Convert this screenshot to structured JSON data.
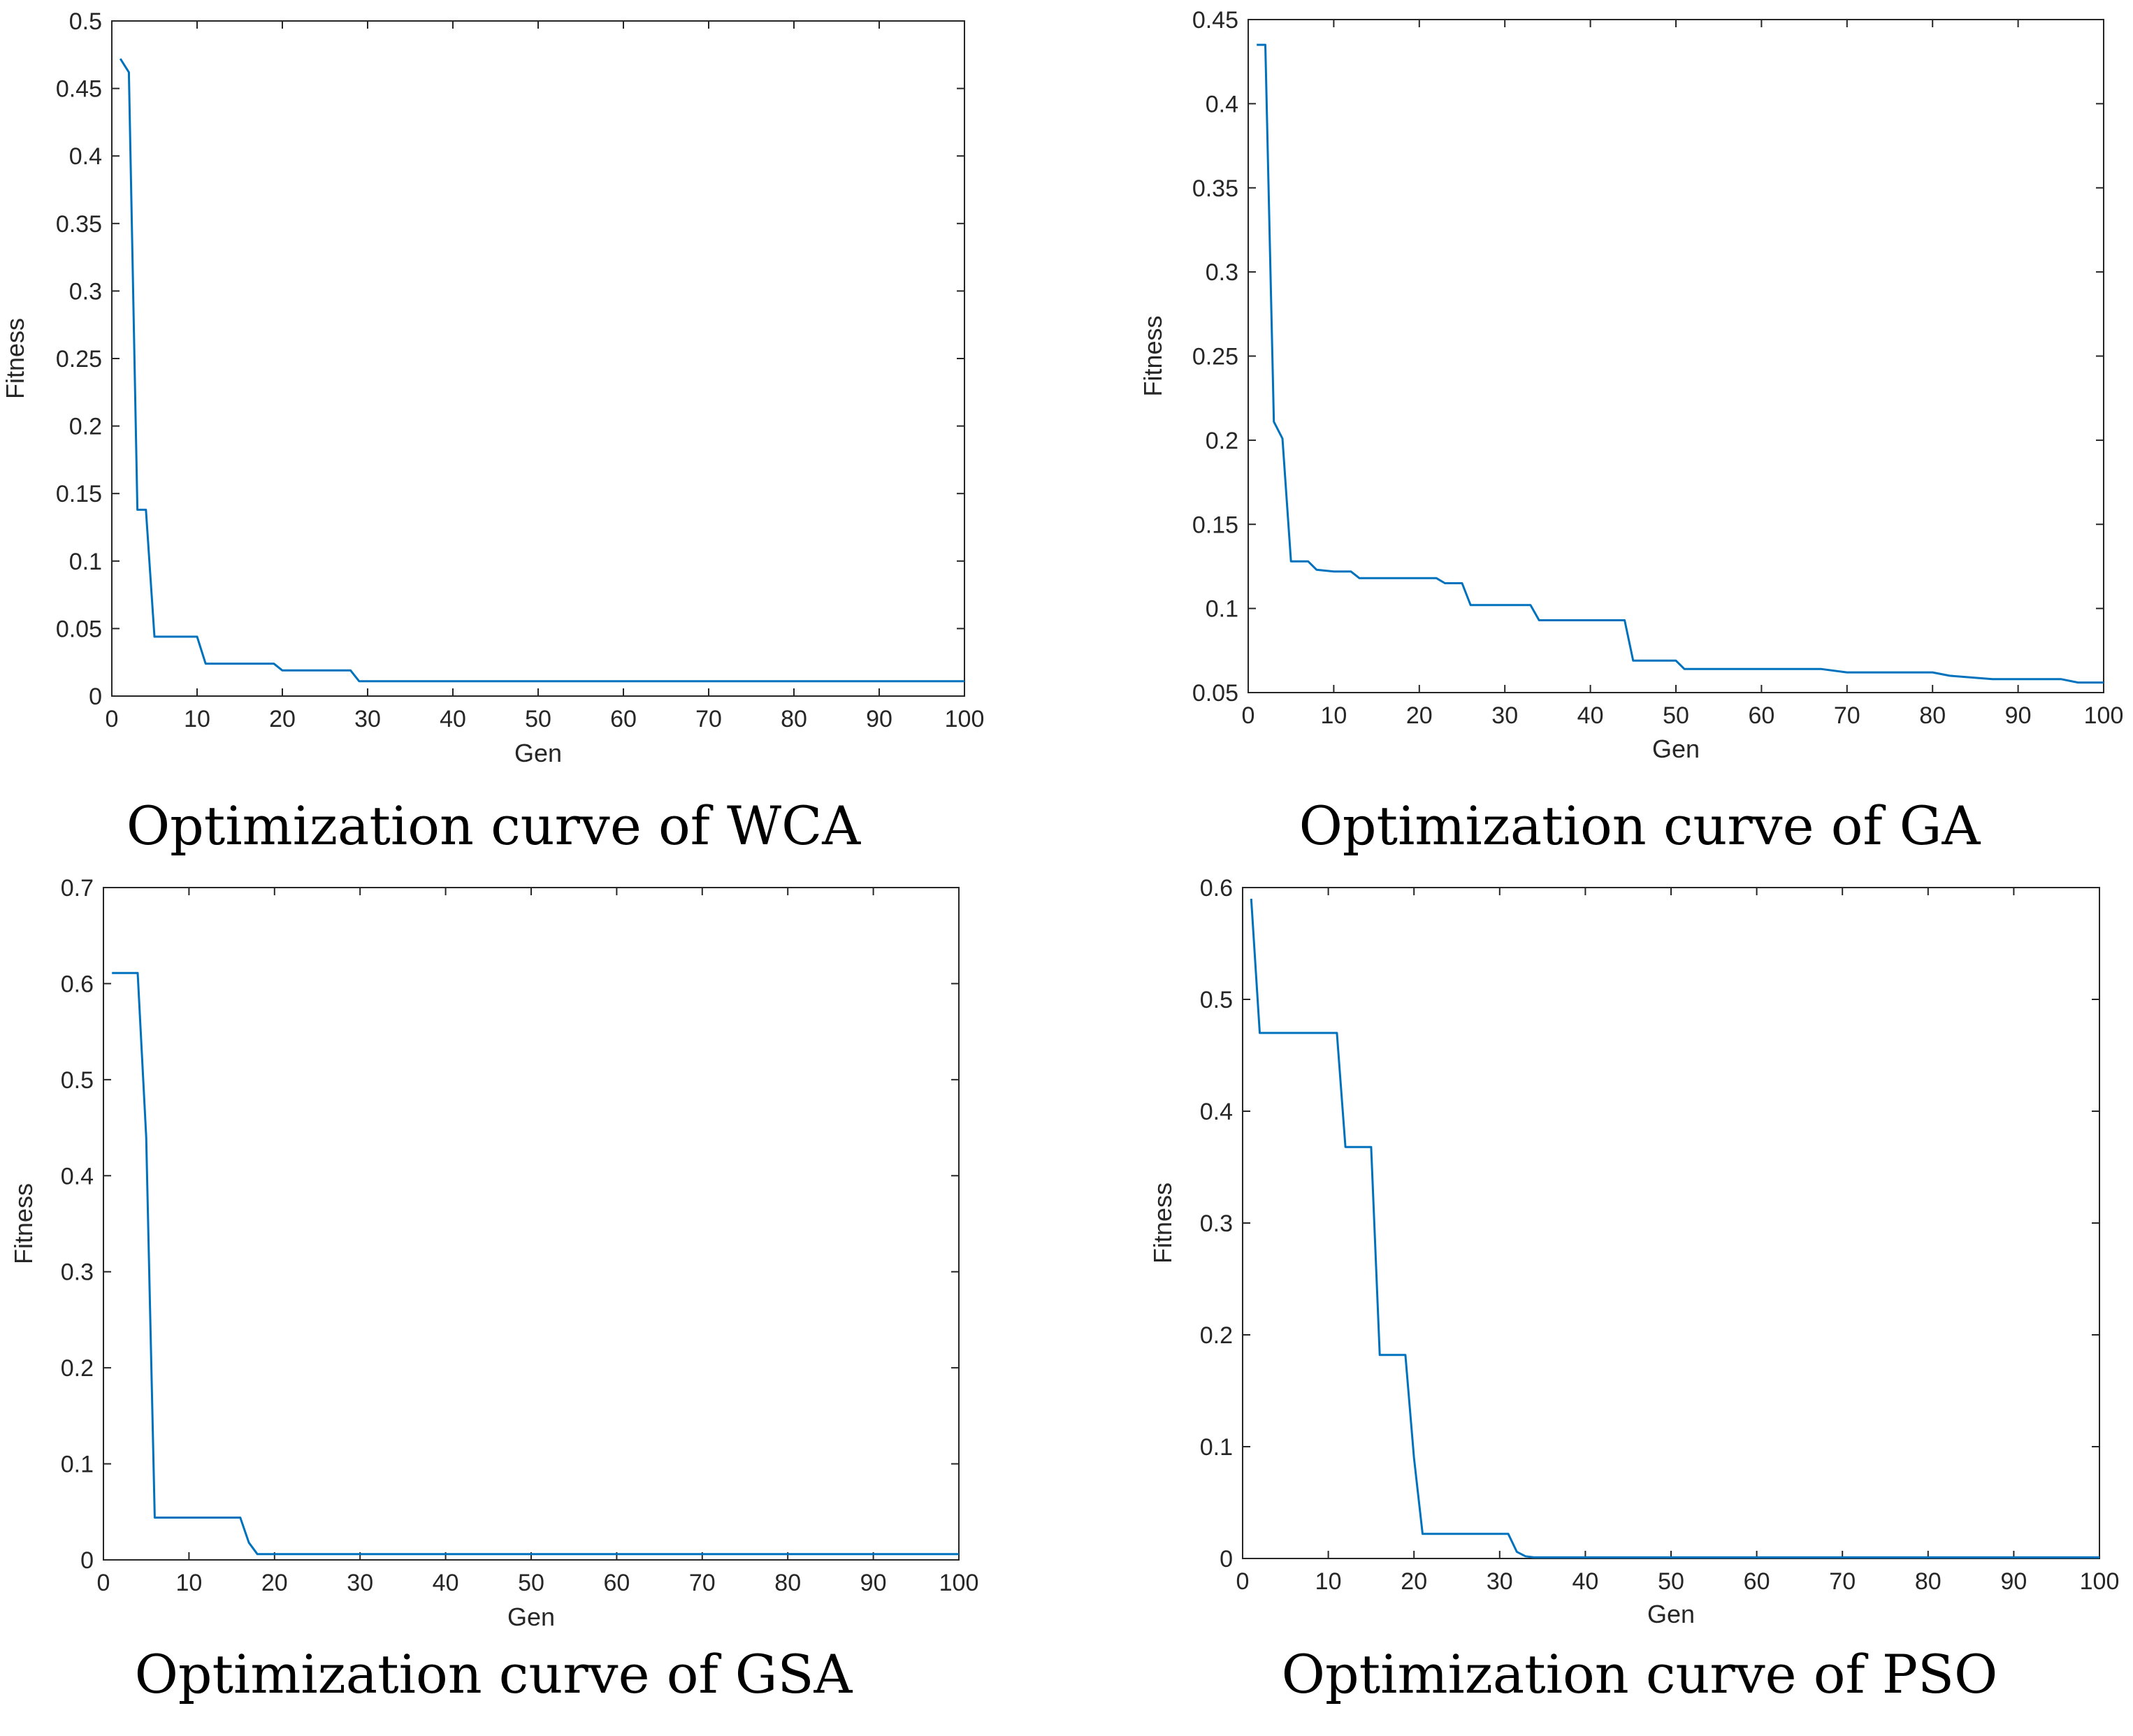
{
  "line_color": "#0072BD",
  "chart_data": [
    {
      "type": "line",
      "title": "Optimization curve of WCA",
      "xlabel": "Gen",
      "ylabel": "Fitness",
      "xlim": [
        0,
        100
      ],
      "ylim": [
        0,
        0.5
      ],
      "xticks": [
        0,
        10,
        20,
        30,
        40,
        50,
        60,
        70,
        80,
        90,
        100
      ],
      "xtick_labels": [
        "0",
        "10",
        "20",
        "30",
        "40",
        "50",
        "60",
        "70",
        "80",
        "90",
        "100"
      ],
      "yticks": [
        0,
        0.05,
        0.1,
        0.15,
        0.2,
        0.25,
        0.3,
        0.35,
        0.4,
        0.45,
        0.5
      ],
      "ytick_labels": [
        "0",
        "0.05",
        "0.1",
        "0.15",
        "0.2",
        "0.25",
        "0.3",
        "0.35",
        "0.4",
        "0.45",
        "0.5"
      ],
      "series": [
        {
          "name": "WCA",
          "x": [
            1,
            2,
            3,
            4,
            5,
            10,
            11,
            19,
            20,
            28,
            29,
            100
          ],
          "y": [
            0.472,
            0.462,
            0.138,
            0.138,
            0.044,
            0.044,
            0.024,
            0.024,
            0.019,
            0.019,
            0.011,
            0.011
          ]
        }
      ]
    },
    {
      "type": "line",
      "title": "Optimization curve of GA",
      "xlabel": "Gen",
      "ylabel": "Fitness",
      "xlim": [
        0,
        100
      ],
      "ylim": [
        0.05,
        0.45
      ],
      "xticks": [
        0,
        10,
        20,
        30,
        40,
        50,
        60,
        70,
        80,
        90,
        100
      ],
      "xtick_labels": [
        "0",
        "10",
        "20",
        "30",
        "40",
        "50",
        "60",
        "70",
        "80",
        "90",
        "100"
      ],
      "yticks": [
        0.05,
        0.1,
        0.15,
        0.2,
        0.25,
        0.3,
        0.35,
        0.4,
        0.45
      ],
      "ytick_labels": [
        "0.05",
        "0.1",
        "0.15",
        "0.2",
        "0.25",
        "0.3",
        "0.35",
        "0.4",
        "0.45"
      ],
      "series": [
        {
          "name": "GA",
          "x": [
            1,
            2,
            3,
            4,
            5,
            7,
            8,
            10,
            12,
            13,
            22,
            23,
            25,
            26,
            33,
            34,
            44,
            45,
            50,
            51,
            67,
            70,
            80,
            82,
            87,
            95,
            97,
            100
          ],
          "y": [
            0.435,
            0.435,
            0.211,
            0.201,
            0.128,
            0.128,
            0.123,
            0.122,
            0.122,
            0.118,
            0.118,
            0.115,
            0.115,
            0.102,
            0.102,
            0.093,
            0.093,
            0.069,
            0.069,
            0.064,
            0.064,
            0.062,
            0.062,
            0.06,
            0.058,
            0.058,
            0.056,
            0.056
          ]
        }
      ]
    },
    {
      "type": "line",
      "title": "Optimization curve of GSA",
      "xlabel": "Gen",
      "ylabel": "Fitness",
      "xlim": [
        0,
        100
      ],
      "ylim": [
        0,
        0.7
      ],
      "xticks": [
        0,
        10,
        20,
        30,
        40,
        50,
        60,
        70,
        80,
        90,
        100
      ],
      "xtick_labels": [
        "0",
        "10",
        "20",
        "30",
        "40",
        "50",
        "60",
        "70",
        "80",
        "90",
        "100"
      ],
      "yticks": [
        0,
        0.1,
        0.2,
        0.3,
        0.4,
        0.5,
        0.6,
        0.7
      ],
      "ytick_labels": [
        "0",
        "0.1",
        "0.2",
        "0.3",
        "0.4",
        "0.5",
        "0.6",
        "0.7"
      ],
      "series": [
        {
          "name": "GSA",
          "x": [
            1,
            4,
            5,
            6,
            16,
            17,
            18,
            100
          ],
          "y": [
            0.611,
            0.611,
            0.44,
            0.044,
            0.044,
            0.018,
            0.006,
            0.006
          ]
        }
      ]
    },
    {
      "type": "line",
      "title": "Optimization curve of PSO",
      "xlabel": "Gen",
      "ylabel": "Fitness",
      "xlim": [
        0,
        100
      ],
      "ylim": [
        0,
        0.6
      ],
      "xticks": [
        0,
        10,
        20,
        30,
        40,
        50,
        60,
        70,
        80,
        90,
        100
      ],
      "xtick_labels": [
        "0",
        "10",
        "20",
        "30",
        "40",
        "50",
        "60",
        "70",
        "80",
        "90",
        "100"
      ],
      "yticks": [
        0,
        0.1,
        0.2,
        0.3,
        0.4,
        0.5,
        0.6
      ],
      "ytick_labels": [
        "0",
        "0.1",
        "0.2",
        "0.3",
        "0.4",
        "0.5",
        "0.6"
      ],
      "series": [
        {
          "name": "PSO",
          "x": [
            1,
            2,
            11,
            12,
            15,
            16,
            19,
            20,
            21,
            31,
            32,
            33,
            34,
            100
          ],
          "y": [
            0.59,
            0.47,
            0.47,
            0.368,
            0.368,
            0.182,
            0.182,
            0.09,
            0.022,
            0.022,
            0.006,
            0.002,
            0.001,
            0.001
          ]
        }
      ]
    }
  ]
}
